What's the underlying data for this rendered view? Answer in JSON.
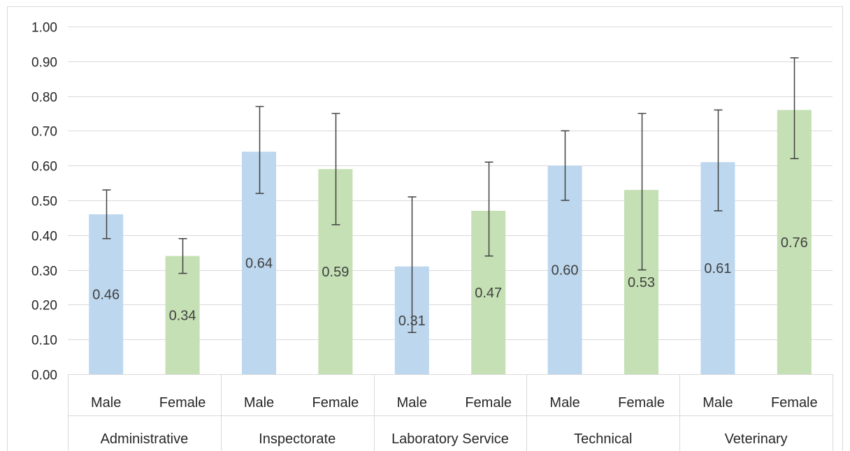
{
  "chart_data": {
    "type": "bar",
    "groups": [
      "Administrative",
      "Inspectorate",
      "Laboratory Service",
      "Technical",
      "Veterinary"
    ],
    "sub_categories": [
      "Male",
      "Female"
    ],
    "series_colors": {
      "Male": "#bdd7ee",
      "Female": "#c5e0b4"
    },
    "values": [
      {
        "group": "Administrative",
        "sub": "Male",
        "value": 0.46,
        "label": "0.46",
        "err_low": 0.39,
        "err_high": 0.53
      },
      {
        "group": "Administrative",
        "sub": "Female",
        "value": 0.34,
        "label": "0.34",
        "err_low": 0.29,
        "err_high": 0.39
      },
      {
        "group": "Inspectorate",
        "sub": "Male",
        "value": 0.64,
        "label": "0.64",
        "err_low": 0.52,
        "err_high": 0.77
      },
      {
        "group": "Inspectorate",
        "sub": "Female",
        "value": 0.59,
        "label": "0.59",
        "err_low": 0.43,
        "err_high": 0.75
      },
      {
        "group": "Laboratory Service",
        "sub": "Male",
        "value": 0.31,
        "label": "0.31",
        "err_low": 0.12,
        "err_high": 0.51
      },
      {
        "group": "Laboratory Service",
        "sub": "Female",
        "value": 0.47,
        "label": "0.47",
        "err_low": 0.34,
        "err_high": 0.61
      },
      {
        "group": "Technical",
        "sub": "Male",
        "value": 0.6,
        "label": "0.60",
        "err_low": 0.5,
        "err_high": 0.7
      },
      {
        "group": "Technical",
        "sub": "Female",
        "value": 0.53,
        "label": "0.53",
        "err_low": 0.3,
        "err_high": 0.75
      },
      {
        "group": "Veterinary",
        "sub": "Male",
        "value": 0.61,
        "label": "0.61",
        "err_low": 0.47,
        "err_high": 0.76
      },
      {
        "group": "Veterinary",
        "sub": "Female",
        "value": 0.76,
        "label": "0.76",
        "err_low": 0.62,
        "err_high": 0.91
      }
    ],
    "ylim": [
      0,
      1.0
    ],
    "yticks": [
      "0.00",
      "0.10",
      "0.20",
      "0.30",
      "0.40",
      "0.50",
      "0.60",
      "0.70",
      "0.80",
      "0.90",
      "1.00"
    ],
    "grid": true,
    "title": "",
    "xlabel": "",
    "ylabel": "",
    "legend": "none"
  }
}
